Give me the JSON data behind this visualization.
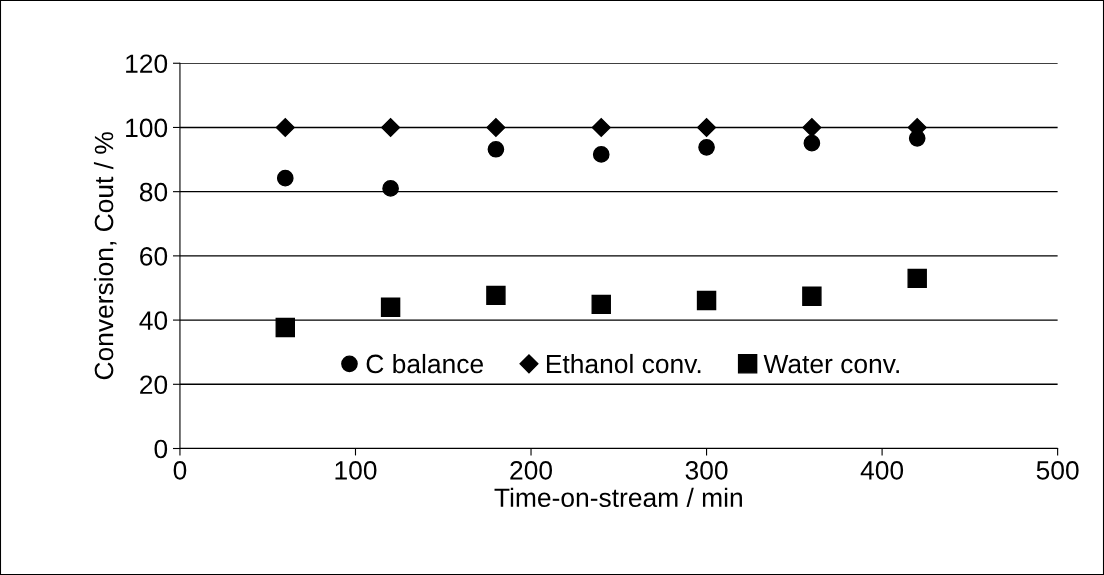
{
  "chart_data": {
    "type": "scatter",
    "xlabel": "Time-on-stream / min",
    "ylabel": "Conversion, Cout / %",
    "x": [
      60,
      120,
      180,
      240,
      300,
      360,
      420
    ],
    "series": [
      {
        "name": "C balance",
        "color": "#000000",
        "marker": "circle",
        "values": [
          84.2,
          81.0,
          93.2,
          91.6,
          93.8,
          95.1,
          96.6
        ]
      },
      {
        "name": "Ethanol conv.",
        "color": "#000000",
        "marker": "diamond",
        "values": [
          100,
          100,
          100,
          100,
          100,
          100,
          100
        ]
      },
      {
        "name": "Water conv.",
        "color": "#000000",
        "marker": "square",
        "values": [
          37.7,
          44.0,
          47.7,
          44.9,
          46.1,
          47.4,
          53.0
        ]
      }
    ],
    "xlim": [
      0,
      500
    ],
    "xticks": [
      0,
      100,
      200,
      300,
      400,
      500
    ],
    "ylim": [
      0,
      120
    ],
    "yticks": [
      0,
      20,
      40,
      60,
      80,
      100,
      120
    ],
    "grid": "y",
    "legend": "bottom"
  }
}
